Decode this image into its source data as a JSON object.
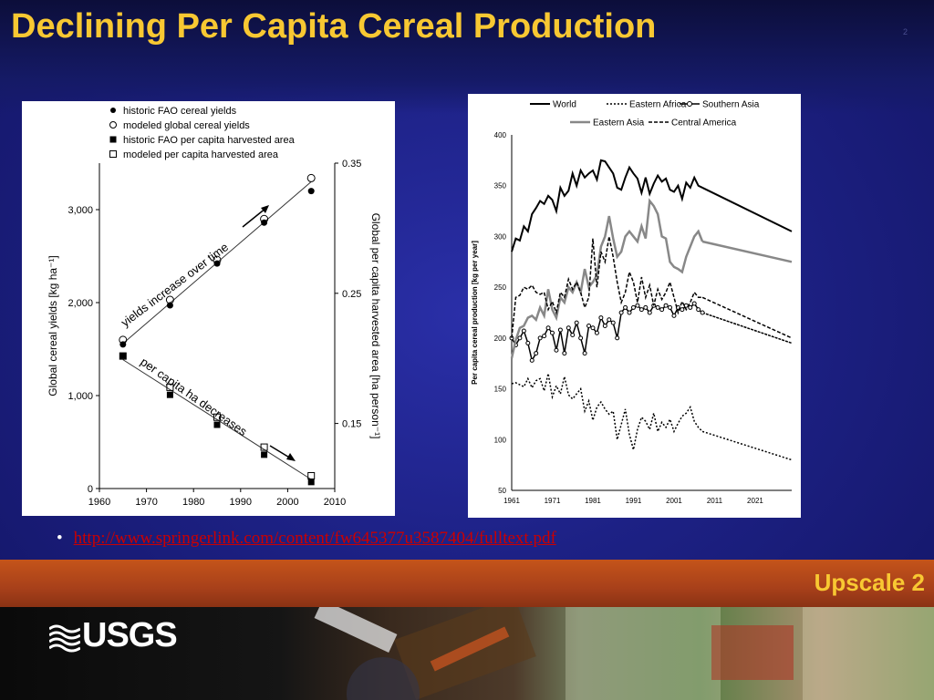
{
  "slide": {
    "title": "Declining Per Capita Cereal Production",
    "slide_number": "2",
    "bullet_link": "http://www.springerlink.com/content/fw645377u3587404/fulltext.pdf",
    "footer_label": "Upscale 2",
    "logo_text": "USGS"
  },
  "colors": {
    "title": "#f8c832",
    "background": "#1d2185",
    "footer_band": "#a8401a",
    "link": "#cc0000"
  },
  "chart_data": [
    {
      "type": "scatter",
      "legend_position": "top-left",
      "legend": [
        {
          "label": "historic FAO cereal yields",
          "marker": "filled-circle"
        },
        {
          "label": "modeled global cereal yields",
          "marker": "open-circle"
        },
        {
          "label": "historic FAO per capita harvested area",
          "marker": "filled-square"
        },
        {
          "label": "modeled per capita harvested area",
          "marker": "open-square"
        }
      ],
      "xlabel": "",
      "ylabel": "Global cereal yields [kg ha⁻¹]",
      "y2label": "Global per capita harvested area [ha person⁻¹]",
      "xlim": [
        1960,
        2010
      ],
      "ylim": [
        0,
        3500
      ],
      "y2lim": [
        0.1,
        0.35
      ],
      "x_ticks": [
        "1960",
        "1970",
        "1980",
        "1990",
        "2000",
        "2010"
      ],
      "y_ticks": [
        "0",
        "1,000",
        "2,000",
        "3,000"
      ],
      "y2_ticks": [
        "0.15",
        "0.25",
        "0.35"
      ],
      "annotations": [
        "yields increase over time",
        "per capita ha decreases"
      ],
      "series": [
        {
          "name": "historic FAO cereal yields",
          "axis": "left",
          "x": [
            1965,
            1975,
            1985,
            1995,
            2005
          ],
          "values": [
            1550,
            1970,
            2420,
            2860,
            3200
          ]
        },
        {
          "name": "modeled global cereal yields",
          "axis": "left",
          "x": [
            1965,
            1975,
            1985,
            1995,
            2005
          ],
          "values": [
            1560,
            1990,
            2420,
            2860,
            3300
          ]
        },
        {
          "name": "historic FAO per capita harvested area",
          "axis": "right",
          "x": [
            1965,
            1975,
            1985,
            1995,
            2005
          ],
          "values": [
            0.202,
            0.172,
            0.149,
            0.126,
            0.105
          ]
        },
        {
          "name": "modeled per capita harvested area",
          "axis": "right",
          "x": [
            1965,
            1975,
            1985,
            1995,
            2005
          ],
          "values": [
            0.199,
            0.175,
            0.152,
            0.129,
            0.107
          ]
        }
      ]
    },
    {
      "type": "line",
      "legend_position": "top",
      "ylabel": "Per capita cereal production [kg per year]",
      "xlim": [
        1961,
        2030
      ],
      "ylim": [
        50,
        400
      ],
      "x_ticks": [
        "1961",
        "1971",
        "1981",
        "1991",
        "2001",
        "2011",
        "2021"
      ],
      "y_ticks": [
        "50",
        "100",
        "150",
        "200",
        "250",
        "300",
        "350",
        "400"
      ],
      "x": [
        1961,
        1962,
        1963,
        1964,
        1965,
        1966,
        1967,
        1968,
        1969,
        1970,
        1971,
        1972,
        1973,
        1974,
        1975,
        1976,
        1977,
        1978,
        1979,
        1980,
        1981,
        1982,
        1983,
        1984,
        1985,
        1986,
        1987,
        1988,
        1989,
        1990,
        1991,
        1992,
        1993,
        1994,
        1995,
        1996,
        1997,
        1998,
        1999,
        2000,
        2001,
        2002,
        2003,
        2004,
        2005,
        2006,
        2007,
        2008,
        2030
      ],
      "series": [
        {
          "name": "World",
          "style": "solid-black",
          "values": [
            285,
            298,
            296,
            310,
            305,
            322,
            328,
            335,
            332,
            340,
            336,
            325,
            348,
            340,
            345,
            362,
            350,
            365,
            358,
            362,
            365,
            356,
            375,
            374,
            368,
            362,
            348,
            346,
            358,
            368,
            362,
            357,
            343,
            358,
            342,
            352,
            360,
            354,
            357,
            346,
            344,
            350,
            337,
            353,
            348,
            358,
            350,
            348,
            305
          ]
        },
        {
          "name": "Eastern Africa",
          "style": "dotted-black",
          "values": [
            155,
            156,
            154,
            152,
            160,
            151,
            158,
            160,
            148,
            165,
            142,
            153,
            145,
            162,
            144,
            140,
            145,
            150,
            128,
            138,
            119,
            132,
            137,
            130,
            125,
            128,
            100,
            115,
            130,
            105,
            90,
            110,
            122,
            118,
            110,
            126,
            108,
            117,
            112,
            120,
            108,
            116,
            123,
            126,
            132,
            118,
            112,
            108,
            80
          ]
        },
        {
          "name": "Southern Asia",
          "style": "solid-black-circles",
          "values": [
            200,
            193,
            200,
            207,
            195,
            178,
            185,
            200,
            202,
            210,
            205,
            188,
            208,
            185,
            210,
            203,
            215,
            200,
            185,
            212,
            210,
            205,
            220,
            212,
            218,
            215,
            200,
            225,
            230,
            225,
            230,
            232,
            228,
            230,
            225,
            232,
            230,
            228,
            232,
            230,
            222,
            230,
            228,
            232,
            230,
            234,
            228,
            225,
            195
          ]
        },
        {
          "name": "Eastern Asia",
          "style": "solid-gray",
          "values": [
            180,
            198,
            210,
            212,
            220,
            222,
            218,
            230,
            222,
            248,
            228,
            220,
            240,
            235,
            250,
            245,
            255,
            245,
            268,
            250,
            255,
            262,
            290,
            300,
            320,
            298,
            280,
            285,
            300,
            305,
            300,
            295,
            310,
            298,
            335,
            330,
            322,
            300,
            298,
            275,
            270,
            268,
            265,
            280,
            290,
            300,
            305,
            295,
            275
          ]
        },
        {
          "name": "Central America",
          "style": "dashed-black",
          "values": [
            200,
            240,
            242,
            250,
            248,
            252,
            245,
            243,
            245,
            228,
            236,
            225,
            245,
            240,
            258,
            248,
            255,
            245,
            230,
            240,
            298,
            250,
            285,
            275,
            300,
            280,
            255,
            235,
            245,
            265,
            255,
            235,
            260,
            240,
            252,
            232,
            248,
            238,
            245,
            255,
            240,
            225,
            236,
            228,
            235,
            245,
            240,
            240,
            200
          ]
        }
      ]
    }
  ]
}
